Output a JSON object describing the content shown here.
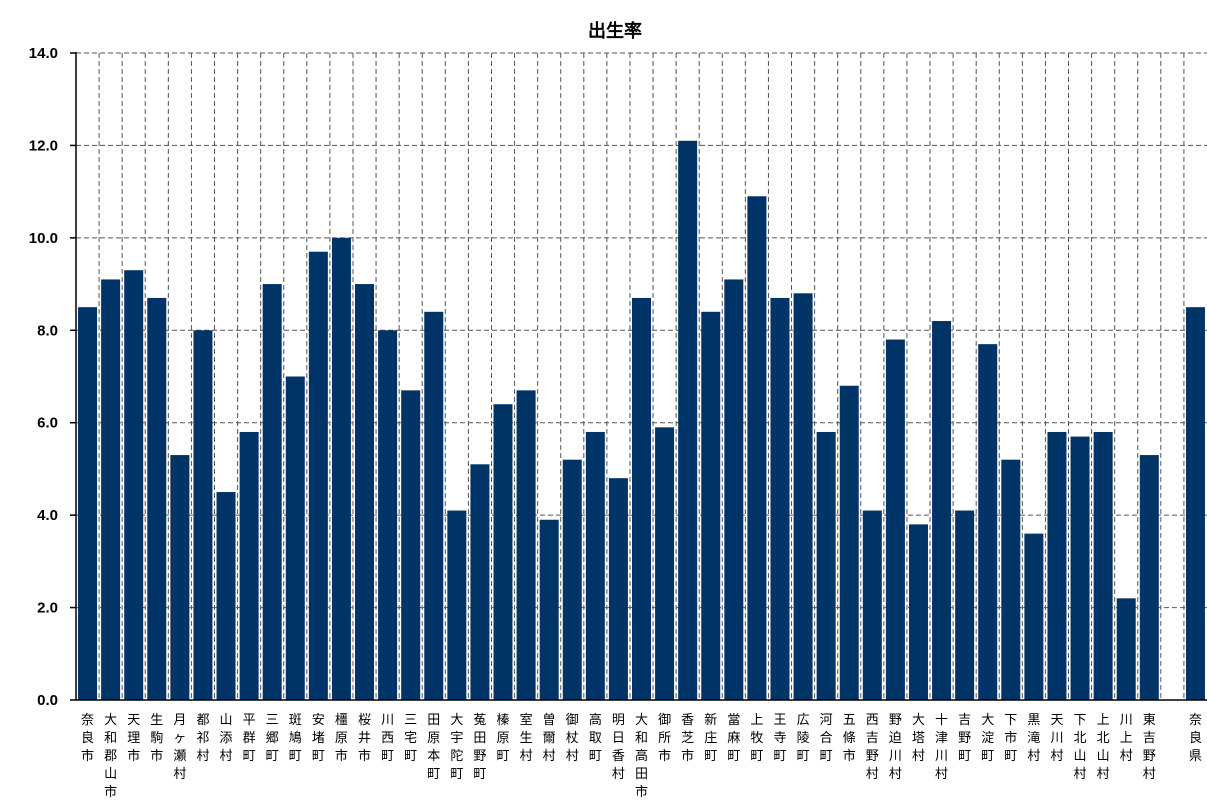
{
  "chart_data": {
    "type": "bar",
    "title": "出生率",
    "xlabel": "",
    "ylabel": "",
    "ylim": [
      0,
      14
    ],
    "yticks": [
      "0.0",
      "2.0",
      "4.0",
      "6.0",
      "8.0",
      "10.0",
      "12.0",
      "14.0"
    ],
    "grid": true,
    "bar_color": "#003366",
    "categories": [
      "奈良市",
      "大和郡山市",
      "天理市",
      "生駒市",
      "月ヶ瀬村",
      "都祁村",
      "山添村",
      "平群町",
      "三郷町",
      "斑鳩町",
      "安堵町",
      "橿原市",
      "桜井市",
      "川西町",
      "三宅町",
      "田原本町",
      "大宇陀町",
      "菟田野町",
      "榛原町",
      "室生村",
      "曽爾村",
      "御杖村",
      "高取町",
      "明日香村",
      "大和高田市",
      "御所市",
      "香芝市",
      "新庄町",
      "當麻町",
      "上牧町",
      "王寺町",
      "広陵町",
      "河合町",
      "五條市",
      "西吉野村",
      "野迫川村",
      "大塔村",
      "十津川村",
      "吉野町",
      "大淀町",
      "下市町",
      "黒滝村",
      "天川村",
      "下北山村",
      "上北山村",
      "川上村",
      "東吉野村",
      "奈良県"
    ],
    "values": [
      8.5,
      9.1,
      9.3,
      8.7,
      5.3,
      8.0,
      4.5,
      5.8,
      9.0,
      7.0,
      9.7,
      10.0,
      9.0,
      8.0,
      6.7,
      8.4,
      4.1,
      5.1,
      6.4,
      6.7,
      3.9,
      5.2,
      5.8,
      4.8,
      8.7,
      5.9,
      12.1,
      8.4,
      9.1,
      10.9,
      8.7,
      8.8,
      5.8,
      6.8,
      4.1,
      7.8,
      3.8,
      8.2,
      4.1,
      7.7,
      5.2,
      3.6,
      5.8,
      5.7,
      5.8,
      2.2,
      5.3,
      8.5
    ]
  }
}
